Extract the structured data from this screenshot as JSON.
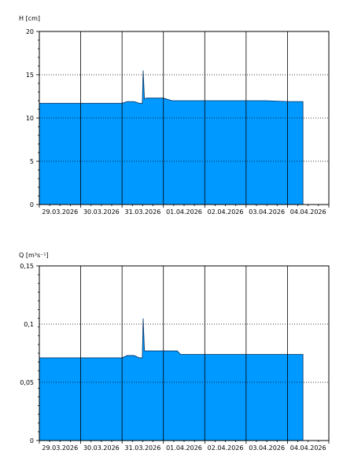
{
  "chart_data": [
    {
      "type": "area",
      "ylabel": "H [cm]",
      "ylim": [
        0,
        20
      ],
      "yticks": [
        "0",
        "5",
        "10",
        "15",
        "20"
      ],
      "ytick_values": [
        0,
        5,
        10,
        15,
        20
      ],
      "xlim": [
        "29.03.2026 00:00",
        "05.04.2026 00:00"
      ],
      "categories": [
        "29.03.2026",
        "30.03.2026",
        "31.03.2026",
        "01.04.2026",
        "02.04.2026",
        "03.04.2026",
        "04.04.2026"
      ],
      "grid": true,
      "fill_color": "#0099ff",
      "series": [
        {
          "x": [
            "29.03.2026 00:00",
            "31.03.2026 00:00",
            "31.03.2026 03:00",
            "31.03.2026 07:00",
            "31.03.2026 10:00",
            "31.03.2026 11:45",
            "31.03.2026 12:15",
            "31.03.2026 13:00",
            "31.03.2026 14:00",
            "01.04.2026 00:00",
            "01.04.2026 05:00",
            "01.04.2026 12:00",
            "02.04.2026 12:00",
            "03.04.2026 00:00",
            "03.04.2026 12:00",
            "04.04.2026 00:00",
            "04.04.2026 09:00",
            "04.04.2026 09:00"
          ],
          "values": [
            11.7,
            11.7,
            11.9,
            11.9,
            11.7,
            11.7,
            15.5,
            12.2,
            12.3,
            12.3,
            12.0,
            12.0,
            12.0,
            12.0,
            12.0,
            11.9,
            11.9,
            0
          ]
        }
      ]
    },
    {
      "type": "area",
      "ylabel": "Q [m³s⁻¹]",
      "ylim": [
        0,
        0.15
      ],
      "yticks": [
        "0",
        "0,05",
        "0,1",
        "0,15"
      ],
      "ytick_values": [
        0,
        0.05,
        0.1,
        0.15
      ],
      "xlim": [
        "29.03.2026 00:00",
        "05.04.2026 00:00"
      ],
      "categories": [
        "29.03.2026",
        "30.03.2026",
        "31.03.2026",
        "01.04.2026",
        "02.04.2026",
        "03.04.2026",
        "04.04.2026"
      ],
      "grid": true,
      "fill_color": "#0099ff",
      "series": [
        {
          "x": [
            "29.03.2026 00:00",
            "31.03.2026 00:00",
            "31.03.2026 03:00",
            "31.03.2026 07:00",
            "31.03.2026 10:00",
            "31.03.2026 11:45",
            "31.03.2026 12:15",
            "31.03.2026 13:00",
            "31.03.2026 14:00",
            "01.04.2026 08:00",
            "01.04.2026 10:00",
            "04.04.2026 09:00",
            "04.04.2026 09:00"
          ],
          "values": [
            0.071,
            0.071,
            0.073,
            0.073,
            0.071,
            0.071,
            0.105,
            0.077,
            0.077,
            0.077,
            0.074,
            0.074,
            0
          ]
        }
      ]
    }
  ]
}
